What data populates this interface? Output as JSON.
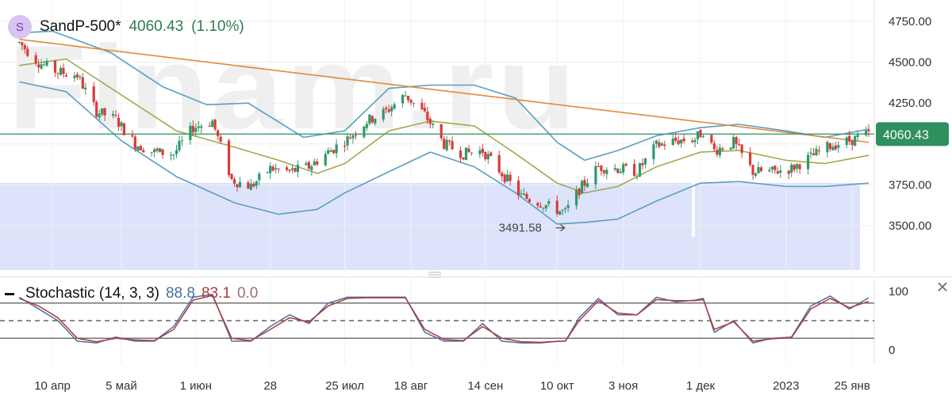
{
  "header": {
    "avatar_letter": "S",
    "symbol": "SandP-500*",
    "last_price": "4060.43",
    "change_pct": "(1.10%)"
  },
  "watermark": "Finam.ru",
  "colors": {
    "up": "#2e9a6a",
    "down": "#d93b3b",
    "bollinger": "#5a9ec2",
    "sma": "#a3a84d",
    "trendline": "#e08a3c",
    "hline": "#3a9a6a",
    "volume": "#dde3fb",
    "stoch_k": "#4a6fa5",
    "stoch_d": "#b03a3a"
  },
  "chart_data": [
    {
      "type": "candlestick",
      "title": "SandP-500*",
      "y_ticks": [
        3500,
        3750,
        4000,
        4250,
        4500,
        4750
      ],
      "y_tick_labels": [
        "3500.00",
        "3750.00",
        "",
        "4250.00",
        "4500.00",
        "4750.00"
      ],
      "ylim": [
        3300,
        4800
      ],
      "x_tick_labels": [
        "10 апр",
        "5 май",
        "1 июн",
        "28",
        "25 июл",
        "18 авг",
        "14 сен",
        "10 окт",
        "3 ноя",
        "1 дек",
        "2023",
        "25 янв"
      ],
      "last_price_label": "4060.43",
      "annotations": [
        {
          "text": "3491.58",
          "x": "2022-10-13",
          "y": 3491.58
        }
      ],
      "horizontal_line": 4060.43,
      "trendline": {
        "from": {
          "date": "2022-03-29",
          "y": 4640
        },
        "to": {
          "date": "2023-01-31",
          "y": 4010
        }
      },
      "price_path": [
        [
          "2022-03-29",
          4620
        ],
        [
          "2022-04-05",
          4500
        ],
        [
          "2022-04-12",
          4440
        ],
        [
          "2022-04-19",
          4420
        ],
        [
          "2022-04-26",
          4200
        ],
        [
          "2022-05-03",
          4150
        ],
        [
          "2022-05-10",
          4000
        ],
        [
          "2022-05-17",
          3950
        ],
        [
          "2022-05-24",
          3940
        ],
        [
          "2022-05-31",
          4100
        ],
        [
          "2022-06-07",
          4140
        ],
        [
          "2022-06-14",
          3780
        ],
        [
          "2022-06-21",
          3740
        ],
        [
          "2022-06-28",
          3850
        ],
        [
          "2022-07-05",
          3830
        ],
        [
          "2022-07-12",
          3860
        ],
        [
          "2022-07-19",
          3950
        ],
        [
          "2022-07-26",
          4030
        ],
        [
          "2022-08-02",
          4140
        ],
        [
          "2022-08-09",
          4200
        ],
        [
          "2022-08-16",
          4300
        ],
        [
          "2022-08-23",
          4180
        ],
        [
          "2022-08-30",
          4000
        ],
        [
          "2022-09-06",
          3940
        ],
        [
          "2022-09-13",
          3960
        ],
        [
          "2022-09-20",
          3820
        ],
        [
          "2022-09-27",
          3680
        ],
        [
          "2022-10-04",
          3640
        ],
        [
          "2022-10-11",
          3590
        ],
        [
          "2022-10-13",
          3580
        ],
        [
          "2022-10-18",
          3720
        ],
        [
          "2022-10-25",
          3860
        ],
        [
          "2022-11-01",
          3850
        ],
        [
          "2022-11-08",
          3830
        ],
        [
          "2022-11-15",
          3990
        ],
        [
          "2022-11-22",
          4020
        ],
        [
          "2022-11-29",
          4030
        ],
        [
          "2022-12-02",
          4080
        ],
        [
          "2022-12-06",
          3960
        ],
        [
          "2022-12-13",
          4010
        ],
        [
          "2022-12-20",
          3830
        ],
        [
          "2022-12-27",
          3830
        ],
        [
          "2023-01-03",
          3850
        ],
        [
          "2023-01-10",
          3920
        ],
        [
          "2023-01-17",
          3990
        ],
        [
          "2023-01-24",
          4020
        ],
        [
          "2023-01-31",
          4060
        ]
      ],
      "bollinger_upper": [
        [
          "2022-03-29",
          4680
        ],
        [
          "2022-04-10",
          4690
        ],
        [
          "2022-05-01",
          4560
        ],
        [
          "2022-05-20",
          4350
        ],
        [
          "2022-06-05",
          4240
        ],
        [
          "2022-06-20",
          4250
        ],
        [
          "2022-07-10",
          4040
        ],
        [
          "2022-07-25",
          4080
        ],
        [
          "2022-08-10",
          4340
        ],
        [
          "2022-08-25",
          4360
        ],
        [
          "2022-09-10",
          4360
        ],
        [
          "2022-09-25",
          4280
        ],
        [
          "2022-10-10",
          4010
        ],
        [
          "2022-10-20",
          3900
        ],
        [
          "2022-11-01",
          3960
        ],
        [
          "2022-11-15",
          4050
        ],
        [
          "2022-12-01",
          4100
        ],
        [
          "2022-12-15",
          4120
        ],
        [
          "2023-01-01",
          4080
        ],
        [
          "2023-01-15",
          4040
        ],
        [
          "2023-01-31",
          4090
        ]
      ],
      "bollinger_lower": [
        [
          "2022-03-29",
          4380
        ],
        [
          "2022-04-15",
          4320
        ],
        [
          "2022-05-05",
          4020
        ],
        [
          "2022-05-25",
          3800
        ],
        [
          "2022-06-15",
          3640
        ],
        [
          "2022-07-01",
          3570
        ],
        [
          "2022-07-15",
          3600
        ],
        [
          "2022-07-25",
          3700
        ],
        [
          "2022-08-10",
          3830
        ],
        [
          "2022-08-25",
          3950
        ],
        [
          "2022-09-10",
          3860
        ],
        [
          "2022-09-25",
          3700
        ],
        [
          "2022-10-10",
          3510
        ],
        [
          "2022-10-20",
          3520
        ],
        [
          "2022-11-01",
          3540
        ],
        [
          "2022-11-15",
          3650
        ],
        [
          "2022-12-01",
          3760
        ],
        [
          "2022-12-15",
          3770
        ],
        [
          "2023-01-01",
          3740
        ],
        [
          "2023-01-15",
          3740
        ],
        [
          "2023-01-31",
          3760
        ]
      ],
      "sma": [
        [
          "2022-03-29",
          4480
        ],
        [
          "2022-04-15",
          4520
        ],
        [
          "2022-05-05",
          4300
        ],
        [
          "2022-05-25",
          4080
        ],
        [
          "2022-06-15",
          3980
        ],
        [
          "2022-07-01",
          3900
        ],
        [
          "2022-07-15",
          3820
        ],
        [
          "2022-07-25",
          3880
        ],
        [
          "2022-08-10",
          4080
        ],
        [
          "2022-08-25",
          4140
        ],
        [
          "2022-09-10",
          4110
        ],
        [
          "2022-09-25",
          3940
        ],
        [
          "2022-10-10",
          3760
        ],
        [
          "2022-10-20",
          3700
        ],
        [
          "2022-11-01",
          3740
        ],
        [
          "2022-11-15",
          3860
        ],
        [
          "2022-12-01",
          3950
        ],
        [
          "2022-12-15",
          3960
        ],
        [
          "2023-01-01",
          3900
        ],
        [
          "2023-01-15",
          3880
        ],
        [
          "2023-01-31",
          3930
        ]
      ]
    },
    {
      "type": "line",
      "title": "Stochastic (14, 3, 3)",
      "values_label": {
        "k": "88.8",
        "d": "83.1",
        "z": "0.0"
      },
      "y_ticks": [
        0,
        100
      ],
      "ylim": [
        -15,
        110
      ],
      "levels": {
        "upper": 80,
        "middle": 50,
        "lower": 20
      },
      "series": [
        {
          "key": "k",
          "values": [
            [
              "2022-03-29",
              90
            ],
            [
              "2022-04-05",
              70
            ],
            [
              "2022-04-12",
              50
            ],
            [
              "2022-04-19",
              15
            ],
            [
              "2022-04-26",
              12
            ],
            [
              "2022-05-03",
              22
            ],
            [
              "2022-05-10",
              15
            ],
            [
              "2022-05-17",
              15
            ],
            [
              "2022-05-24",
              40
            ],
            [
              "2022-05-31",
              90
            ],
            [
              "2022-06-07",
              95
            ],
            [
              "2022-06-14",
              15
            ],
            [
              "2022-06-21",
              15
            ],
            [
              "2022-06-28",
              40
            ],
            [
              "2022-07-05",
              60
            ],
            [
              "2022-07-12",
              45
            ],
            [
              "2022-07-19",
              80
            ],
            [
              "2022-07-26",
              90
            ],
            [
              "2022-08-02",
              90
            ],
            [
              "2022-08-09",
              90
            ],
            [
              "2022-08-16",
              90
            ],
            [
              "2022-08-23",
              30
            ],
            [
              "2022-08-30",
              15
            ],
            [
              "2022-09-06",
              15
            ],
            [
              "2022-09-13",
              45
            ],
            [
              "2022-09-20",
              15
            ],
            [
              "2022-09-27",
              12
            ],
            [
              "2022-10-04",
              12
            ],
            [
              "2022-10-11",
              15
            ],
            [
              "2022-10-13",
              15
            ],
            [
              "2022-10-18",
              55
            ],
            [
              "2022-10-25",
              88
            ],
            [
              "2022-11-01",
              60
            ],
            [
              "2022-11-08",
              60
            ],
            [
              "2022-11-15",
              90
            ],
            [
              "2022-11-22",
              82
            ],
            [
              "2022-11-29",
              85
            ],
            [
              "2022-12-02",
              88
            ],
            [
              "2022-12-06",
              30
            ],
            [
              "2022-12-13",
              50
            ],
            [
              "2022-12-20",
              12
            ],
            [
              "2022-12-27",
              20
            ],
            [
              "2023-01-03",
              22
            ],
            [
              "2023-01-10",
              75
            ],
            [
              "2023-01-17",
              92
            ],
            [
              "2023-01-24",
              70
            ],
            [
              "2023-01-31",
              89
            ]
          ]
        },
        {
          "key": "d",
          "values": [
            [
              "2022-03-29",
              88
            ],
            [
              "2022-04-05",
              75
            ],
            [
              "2022-04-12",
              55
            ],
            [
              "2022-04-19",
              20
            ],
            [
              "2022-04-26",
              14
            ],
            [
              "2022-05-03",
              20
            ],
            [
              "2022-05-10",
              17
            ],
            [
              "2022-05-17",
              16
            ],
            [
              "2022-05-24",
              35
            ],
            [
              "2022-05-31",
              85
            ],
            [
              "2022-06-07",
              93
            ],
            [
              "2022-06-14",
              20
            ],
            [
              "2022-06-21",
              16
            ],
            [
              "2022-06-28",
              35
            ],
            [
              "2022-07-05",
              55
            ],
            [
              "2022-07-12",
              48
            ],
            [
              "2022-07-19",
              75
            ],
            [
              "2022-07-26",
              88
            ],
            [
              "2022-08-02",
              89
            ],
            [
              "2022-08-09",
              89
            ],
            [
              "2022-08-16",
              89
            ],
            [
              "2022-08-23",
              35
            ],
            [
              "2022-08-30",
              18
            ],
            [
              "2022-09-06",
              16
            ],
            [
              "2022-09-13",
              40
            ],
            [
              "2022-09-20",
              20
            ],
            [
              "2022-09-27",
              14
            ],
            [
              "2022-10-04",
              13
            ],
            [
              "2022-10-11",
              15
            ],
            [
              "2022-10-13",
              15
            ],
            [
              "2022-10-18",
              50
            ],
            [
              "2022-10-25",
              84
            ],
            [
              "2022-11-01",
              63
            ],
            [
              "2022-11-08",
              60
            ],
            [
              "2022-11-15",
              86
            ],
            [
              "2022-11-22",
              84
            ],
            [
              "2022-11-29",
              84
            ],
            [
              "2022-12-02",
              86
            ],
            [
              "2022-12-06",
              35
            ],
            [
              "2022-12-13",
              48
            ],
            [
              "2022-12-20",
              15
            ],
            [
              "2022-12-27",
              19
            ],
            [
              "2023-01-03",
              21
            ],
            [
              "2023-01-10",
              70
            ],
            [
              "2023-01-17",
              88
            ],
            [
              "2023-01-24",
              72
            ],
            [
              "2023-01-31",
              83
            ]
          ]
        }
      ]
    }
  ]
}
